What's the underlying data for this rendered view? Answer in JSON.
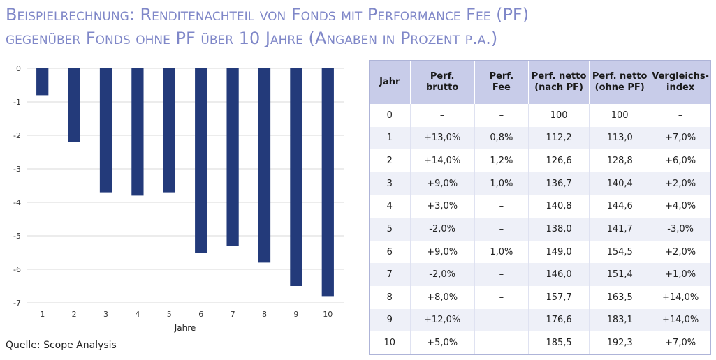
{
  "title": {
    "line1": "Beispielrechnung: Renditenachteil von Fonds mit Performance Fee (PF)",
    "line2": "gegenüber Fonds ohne PF über 10 Jahre (Angaben in Prozent p.a.)"
  },
  "source": "Quelle: Scope Analysis",
  "colors": {
    "bar": "#233a7a",
    "title": "#7f87c8",
    "table_header": "#c8cce9",
    "table_stripe": "#eef0f8"
  },
  "chart_data": {
    "type": "bar",
    "categories": [
      "1",
      "2",
      "3",
      "4",
      "5",
      "6",
      "7",
      "8",
      "9",
      "10"
    ],
    "values": [
      -0.8,
      -2.2,
      -3.7,
      -3.8,
      -3.7,
      -5.5,
      -5.3,
      -5.8,
      -6.5,
      -6.8
    ],
    "xlabel": "Jahre",
    "ylabel": "",
    "ylim": [
      -7,
      0
    ],
    "yticks": [
      "0",
      "-1",
      "-2",
      "-3",
      "-4",
      "-5",
      "-6",
      "-7"
    ],
    "grid": true
  },
  "table": {
    "headers": [
      [
        "Jahr"
      ],
      [
        "Perf.",
        "brutto"
      ],
      [
        "Perf.",
        "Fee"
      ],
      [
        "Perf. netto",
        "(nach PF)"
      ],
      [
        "Perf. netto",
        "(ohne PF)"
      ],
      [
        "Vergleichs-",
        "index"
      ]
    ],
    "rows": [
      [
        "0",
        "–",
        "–",
        "100",
        "100",
        "–"
      ],
      [
        "1",
        "+13,0%",
        "0,8%",
        "112,2",
        "113,0",
        "+7,0%"
      ],
      [
        "2",
        "+14,0%",
        "1,2%",
        "126,6",
        "128,8",
        "+6,0%"
      ],
      [
        "3",
        "+9,0%",
        "1,0%",
        "136,7",
        "140,4",
        "+2,0%"
      ],
      [
        "4",
        "+3,0%",
        "–",
        "140,8",
        "144,6",
        "+4,0%"
      ],
      [
        "5",
        "-2,0%",
        "–",
        "138,0",
        "141,7",
        "-3,0%"
      ],
      [
        "6",
        "+9,0%",
        "1,0%",
        "149,0",
        "154,5",
        "+2,0%"
      ],
      [
        "7",
        "-2,0%",
        "–",
        "146,0",
        "151,4",
        "+1,0%"
      ],
      [
        "8",
        "+8,0%",
        "–",
        "157,7",
        "163,5",
        "+14,0%"
      ],
      [
        "9",
        "+12,0%",
        "–",
        "176,6",
        "183,1",
        "+14,0%"
      ],
      [
        "10",
        "+5,0%",
        "–",
        "185,5",
        "192,3",
        "+7,0%"
      ]
    ]
  }
}
